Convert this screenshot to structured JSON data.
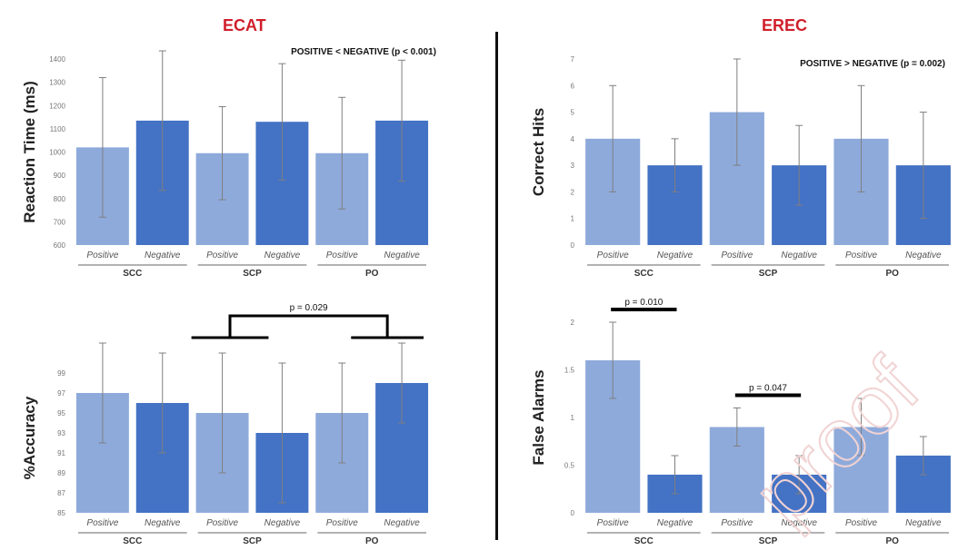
{
  "panels": {
    "left_title": "ECAT",
    "right_title": "EREC"
  },
  "watermark": {
    "text": "proof"
  },
  "colors": {
    "light": "#8eaadb",
    "dark": "#4472c4",
    "title": "#d01f2b",
    "errorbar": "#7f7f7f"
  },
  "chart_data": [
    {
      "type": "bar",
      "panel": "ECAT",
      "ylabel": "Reaction Time (ms)",
      "ylim": [
        600,
        1400
      ],
      "yticks": [
        600,
        700,
        800,
        900,
        1000,
        1100,
        1200,
        1300,
        1400
      ],
      "categories": [
        "Positive",
        "Negative",
        "Positive",
        "Negative",
        "Positive",
        "Negative"
      ],
      "groups": [
        "SCC",
        "SCP",
        "PO"
      ],
      "values": [
        1020,
        1135,
        995,
        1130,
        995,
        1135
      ],
      "errors": [
        300,
        300,
        200,
        250,
        240,
        260
      ],
      "shades": [
        "light",
        "dark",
        "light",
        "dark",
        "light",
        "dark"
      ],
      "annotation": "POSITIVE < NEGATIVE (p < 0.001)",
      "brackets": []
    },
    {
      "type": "bar",
      "panel": "EREC",
      "ylabel": "Correct Hits",
      "ylim": [
        0,
        7
      ],
      "yticks": [
        0,
        1,
        2,
        3,
        4,
        5,
        6,
        7
      ],
      "categories": [
        "Positive",
        "Negative",
        "Positive",
        "Negative",
        "Positive",
        "Negative"
      ],
      "groups": [
        "SCC",
        "SCP",
        "PO"
      ],
      "values": [
        4,
        3,
        5,
        3,
        4,
        3
      ],
      "errors": [
        2,
        1,
        2,
        1.5,
        2,
        2
      ],
      "shades": [
        "light",
        "dark",
        "light",
        "dark",
        "light",
        "dark"
      ],
      "annotation": "POSITIVE > NEGATIVE (p = 0.002)",
      "brackets": []
    },
    {
      "type": "bar",
      "panel": "ECAT",
      "ylabel": "%Accuracy",
      "ylim": [
        85,
        100
      ],
      "yticks": [
        85,
        87,
        89,
        91,
        93,
        95,
        97,
        99
      ],
      "categories": [
        "Positive",
        "Negative",
        "Positive",
        "Negative",
        "Positive",
        "Negative"
      ],
      "groups": [
        "SCC",
        "SCP",
        "PO"
      ],
      "values": [
        97,
        96,
        95,
        93,
        95,
        98
      ],
      "errors": [
        5,
        5,
        6,
        7,
        5,
        4
      ],
      "shades": [
        "light",
        "dark",
        "light",
        "dark",
        "light",
        "dark"
      ],
      "annotation": "",
      "brackets": [
        {
          "label": "p = 0.029",
          "type": "group",
          "from": [
            2,
            3
          ],
          "to": [
            4,
            5
          ]
        }
      ]
    },
    {
      "type": "bar",
      "panel": "EREC",
      "ylabel": "False Alarms",
      "ylim": [
        0,
        2
      ],
      "yticks": [
        0,
        0.5,
        1,
        1.5,
        2
      ],
      "categories": [
        "Positive",
        "Negative",
        "Positive",
        "Negative",
        "Positive",
        "Negative"
      ],
      "groups": [
        "SCC",
        "SCP",
        "PO"
      ],
      "values": [
        1.6,
        0.4,
        0.9,
        0.4,
        0.9,
        0.6
      ],
      "errors": [
        0.4,
        0.2,
        0.2,
        0.2,
        0.3,
        0.2
      ],
      "shades": [
        "light",
        "dark",
        "light",
        "dark",
        "light",
        "dark"
      ],
      "annotation": "",
      "brackets": [
        {
          "label": "p = 0.010",
          "type": "line",
          "from": [
            0
          ],
          "to": [
            1
          ]
        },
        {
          "label": "p = 0.047",
          "type": "line",
          "from": [
            2
          ],
          "to": [
            3
          ]
        }
      ]
    }
  ]
}
